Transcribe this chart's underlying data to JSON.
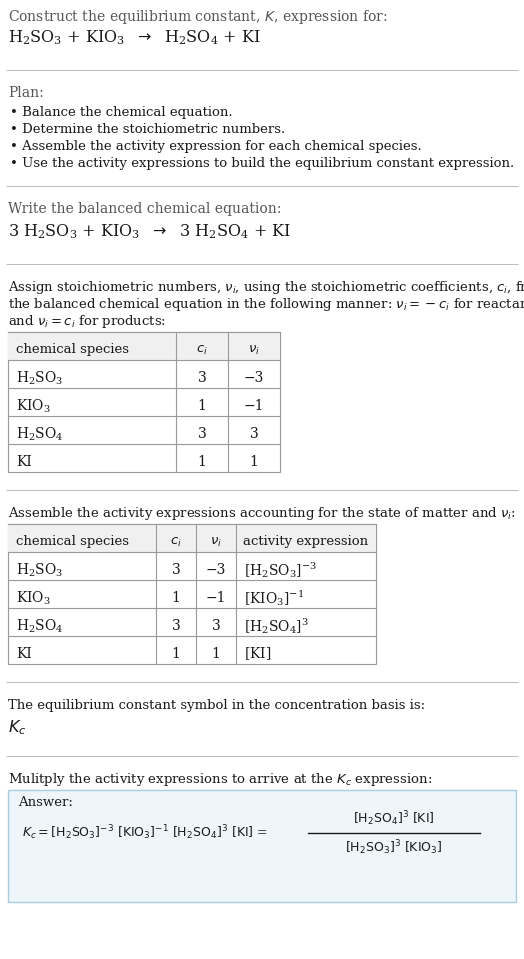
{
  "bg_color": "#ffffff",
  "text_color": "#1a1a1a",
  "gray_header": "#555555",
  "line_color": "#bbbbbb",
  "plan_bullets": [
    "• Balance the chemical equation.",
    "• Determine the stoichiometric numbers.",
    "• Assemble the activity expression for each chemical species.",
    "• Use the activity expressions to build the equilibrium constant expression."
  ],
  "table1_rows": [
    [
      "H₂SO₃",
      "3",
      "−3"
    ],
    [
      "KIO₃",
      "1",
      "−1"
    ],
    [
      "H₂SO₄",
      "3",
      "3"
    ],
    [
      "KI",
      "1",
      "1"
    ]
  ],
  "table2_rows": [
    [
      "H₂SO₃",
      "3",
      "−3",
      "[H₂SO₃]⁻³"
    ],
    [
      "KIO₃",
      "1",
      "−1",
      "[KIO₃]⁻¹"
    ],
    [
      "H₂SO₄",
      "3",
      "3",
      "[H₂SO₄]³"
    ],
    [
      "KI",
      "1",
      "1",
      "[KI]"
    ]
  ],
  "answer_box_fill": "#eef6fb",
  "answer_border_color": "#aacce0",
  "fs_main": 10.0,
  "fs_small": 9.5,
  "fs_formula": 11.5,
  "fs_table": 10.0
}
